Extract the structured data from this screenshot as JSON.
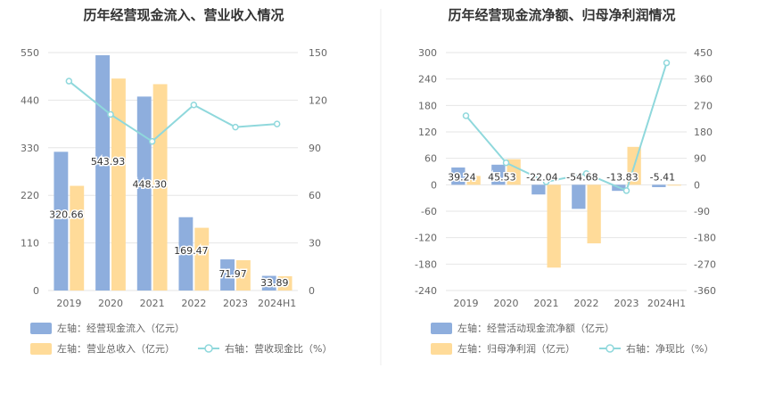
{
  "colors": {
    "bar_primary": "#8eaedd",
    "bar_secondary": "#ffdb99",
    "line": "#8fd8dc",
    "grid": "#e6e6e6",
    "axis_text": "#666666",
    "title": "#333333"
  },
  "chart_data": [
    {
      "type": "bar",
      "title": "历年经营现金流入、营业收入情况",
      "categories": [
        "2019",
        "2020",
        "2021",
        "2022",
        "2023",
        "2024H1"
      ],
      "left_axis": {
        "ticks": [
          "0",
          "110",
          "220",
          "330",
          "440",
          "550"
        ],
        "ylim": [
          0,
          550
        ]
      },
      "right_axis": {
        "ticks": [
          "0",
          "30",
          "60",
          "90",
          "120",
          "150"
        ],
        "ylim": [
          0,
          150
        ]
      },
      "series": [
        {
          "name": "左轴：经营现金流入（亿元）",
          "axis": "left",
          "kind": "bar",
          "color": "#8eaedd",
          "values": [
            320.66,
            543.93,
            448.3,
            169.47,
            71.97,
            33.89
          ],
          "labels": [
            "320.66",
            "543.93",
            "448.30",
            "169.47",
            "71.97",
            "33.89"
          ]
        },
        {
          "name": "左轴：营业总收入（亿元）",
          "axis": "left",
          "kind": "bar",
          "color": "#ffdb99",
          "values": [
            242,
            490,
            477,
            145,
            70,
            33
          ]
        },
        {
          "name": "右轴：营收现金比（%）",
          "axis": "right",
          "kind": "line",
          "color": "#8fd8dc",
          "values": [
            132,
            111,
            94,
            117,
            103,
            105
          ]
        }
      ]
    },
    {
      "type": "bar",
      "title": "历年经营现金流净额、归母净利润情况",
      "categories": [
        "2019",
        "2020",
        "2021",
        "2022",
        "2023",
        "2024H1"
      ],
      "left_axis": {
        "ticks": [
          "-240",
          "-180",
          "-120",
          "-60",
          "0",
          "60",
          "120",
          "180",
          "240",
          "300"
        ],
        "ylim": [
          -240,
          300
        ]
      },
      "right_axis": {
        "ticks": [
          "-360",
          "-270",
          "-180",
          "-90",
          "0",
          "90",
          "180",
          "270",
          "360",
          "450"
        ],
        "ylim": [
          -360,
          450
        ]
      },
      "series": [
        {
          "name": "左轴：经营活动现金流净额（亿元）",
          "axis": "left",
          "kind": "bar",
          "color": "#8eaedd",
          "values": [
            39.24,
            45.53,
            -22.04,
            -54.68,
            -13.83,
            -5.41
          ],
          "labels": [
            "39.24",
            "45.53",
            "-22.04",
            "-54.68",
            "-13.83",
            "-5.41"
          ]
        },
        {
          "name": "左轴：归母净利润（亿元）",
          "axis": "left",
          "kind": "bar",
          "color": "#ffdb99",
          "values": [
            20,
            58,
            -188,
            -133,
            86,
            -2
          ]
        },
        {
          "name": "右轴：净现比（%）",
          "axis": "right",
          "kind": "line",
          "color": "#8fd8dc",
          "values": [
            235,
            75,
            10,
            38,
            -20,
            415
          ]
        }
      ]
    }
  ]
}
